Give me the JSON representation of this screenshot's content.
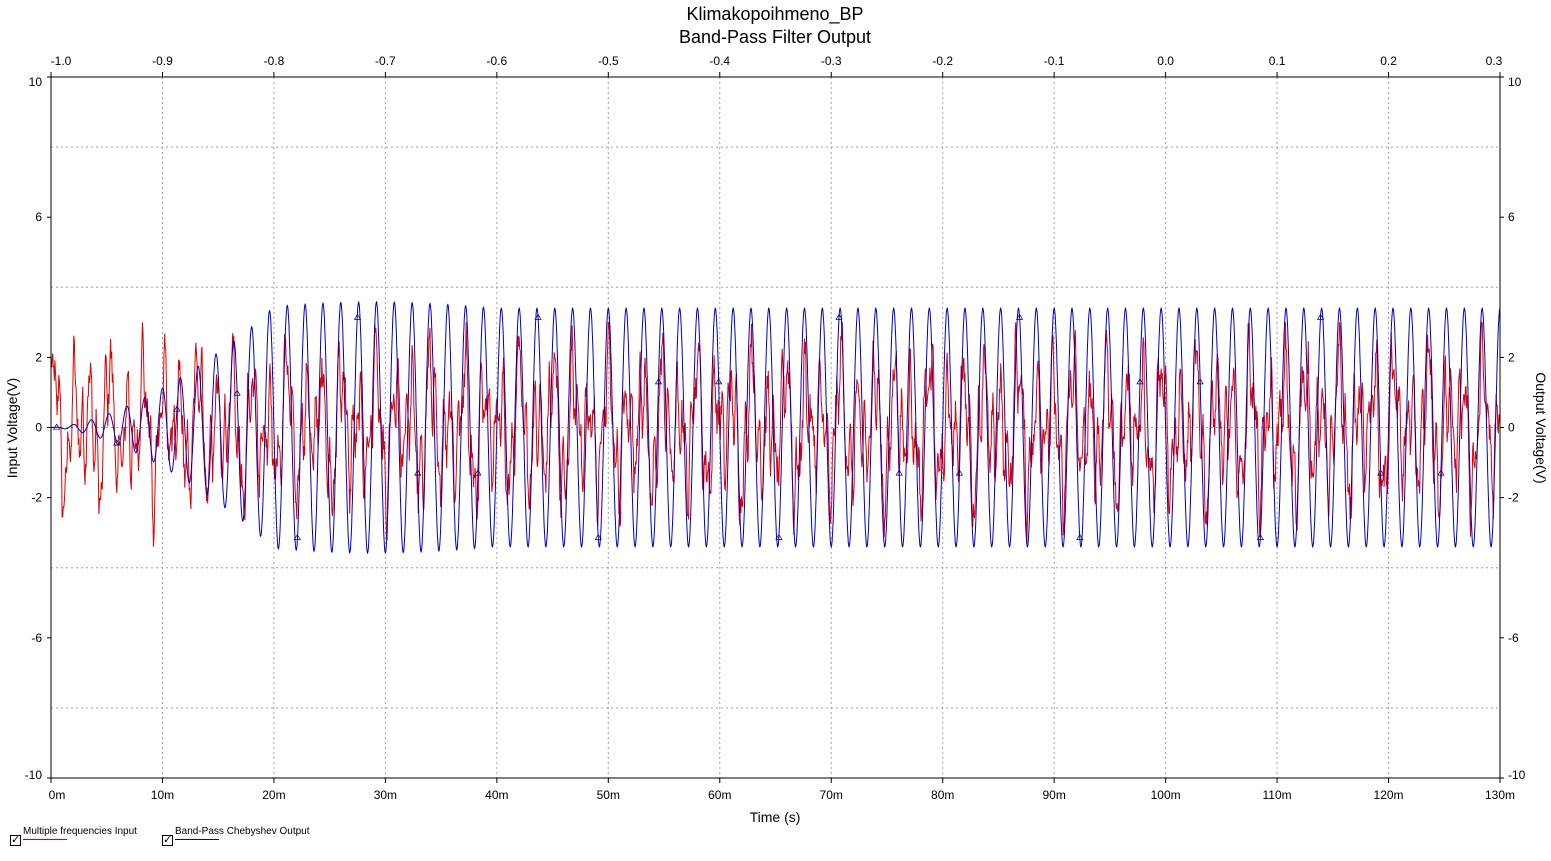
{
  "chart_data": {
    "type": "line",
    "title": "Klimakopoihmeno_BP",
    "subtitle": "Band-Pass Filter Output",
    "xlabel": "Time (s)",
    "ylabel_left": "Input Voltage(V)",
    "ylabel_right": "Output Voltage(V)",
    "x_bottom_ticks": [
      "0m",
      "10m",
      "20m",
      "30m",
      "40m",
      "50m",
      "60m",
      "70m",
      "80m",
      "90m",
      "100m",
      "110m",
      "120m",
      "130m"
    ],
    "x_top_ticks": [
      "-1.0",
      "-0.9",
      "-0.8",
      "-0.7",
      "-0.6",
      "-0.5",
      "-0.4",
      "-0.3",
      "-0.2",
      "-0.1",
      "0.0",
      "0.1",
      "0.2",
      "0.3"
    ],
    "y_left_ticks": [
      "10",
      "6",
      "2",
      "0",
      "-2",
      "-6",
      "-10"
    ],
    "y_right_ticks": [
      "10",
      "6",
      "2",
      "0",
      "-2",
      "-6",
      "-10"
    ],
    "xlim": [
      0,
      0.13
    ],
    "ylim": [
      -10,
      10
    ],
    "grid": true,
    "series": [
      {
        "name": "Multiple frequencies Input",
        "color": "#e00000",
        "description_values": {
          "amplitude_peak": 3.0,
          "start": 0.0,
          "end": 0.13
        }
      },
      {
        "name": "Band-Pass Chebyshev Output",
        "color": "#0000c8",
        "description_values": {
          "amplitude_steady": 3.4,
          "period_s": 0.0016,
          "settle_time_s": 0.02,
          "start": 0.0,
          "end": 0.13
        }
      }
    ]
  },
  "legend": {
    "input_label": "Multiple frequencies Input",
    "output_label": "Band-Pass Chebyshev Output"
  },
  "colors": {
    "input": "#e00000",
    "output": "#0000c8",
    "grid": "#a0a0a0"
  }
}
